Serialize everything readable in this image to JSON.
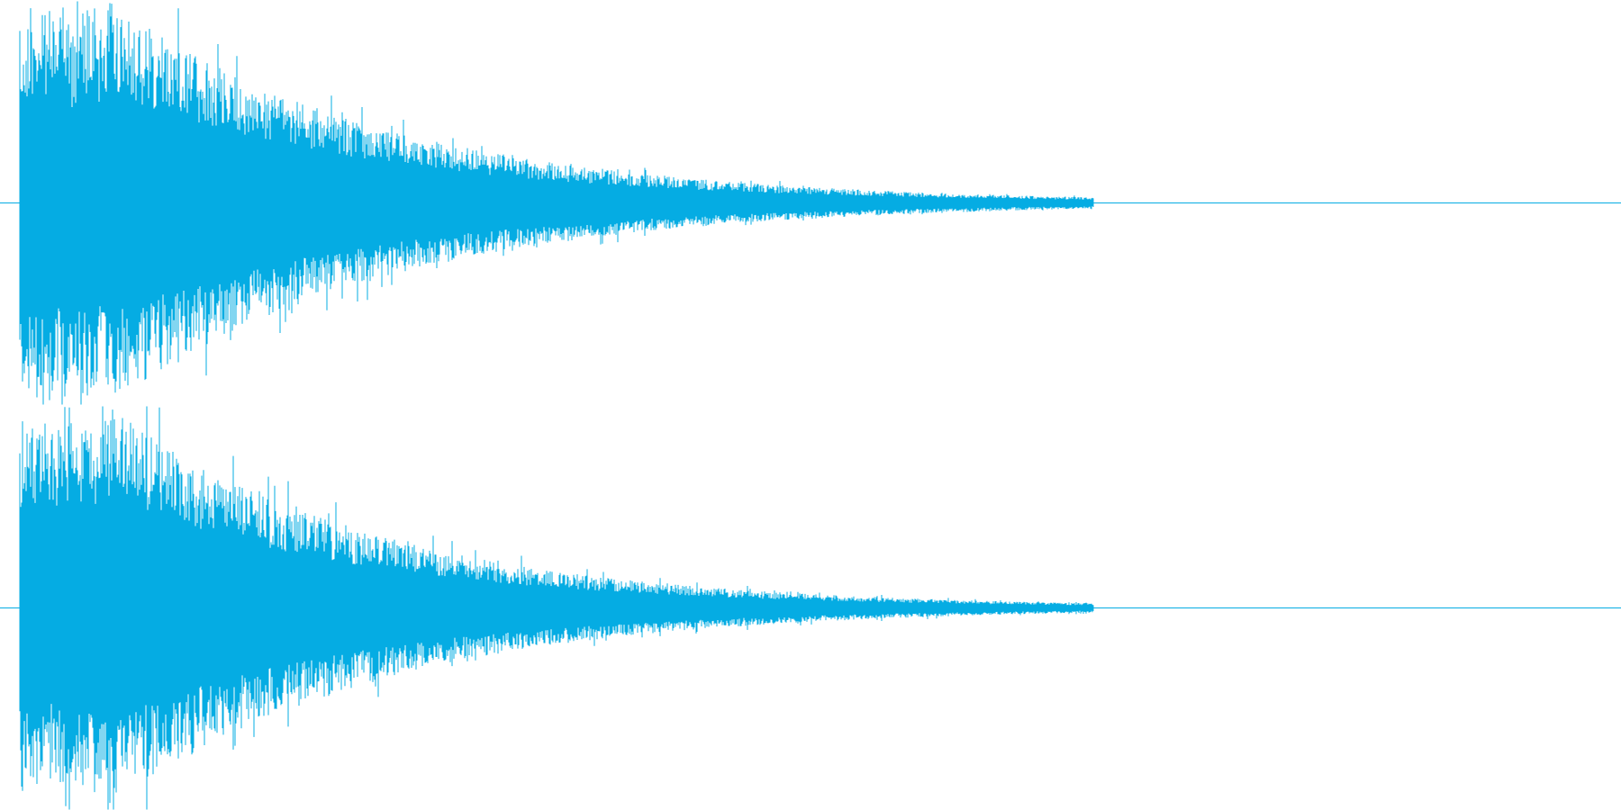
{
  "colors": {
    "waveform": "#05ACE3",
    "background": "#FFFFFF",
    "baseline": "#05ACE3"
  },
  "channels": [
    {
      "name": "",
      "envelope": {
        "peak": 1.0,
        "attack_end": 0.055,
        "decay_rate": 5.8,
        "noise_floor": 0.012,
        "signal_end": 0.78
      }
    },
    {
      "name": "",
      "envelope": {
        "peak": 1.0,
        "attack_end": 0.055,
        "decay_rate": 6.1,
        "noise_floor": 0.011,
        "signal_end": 0.78
      }
    }
  ]
}
